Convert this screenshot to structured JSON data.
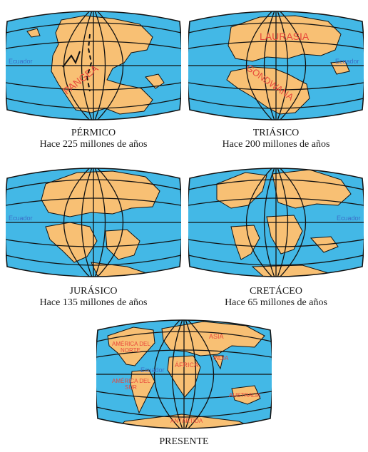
{
  "colors": {
    "ocean": "#43b8e6",
    "land": "#f8c074",
    "grid": "#111111",
    "label": "#e8473b",
    "equator_label": "#3c6fc9"
  },
  "maps": [
    {
      "period": "PÉRMICO",
      "age": "Hace 225 millones de años",
      "equator": "Ecuador",
      "labels": [
        "PANGEA"
      ]
    },
    {
      "period": "TRIÁSICO",
      "age": "Hace 200 millones de años",
      "equator": "Ecuador",
      "labels": [
        "LAURASIA",
        "GONDWANA"
      ]
    },
    {
      "period": "JURÁSICO",
      "age": "Hace 135 millones de años",
      "equator": "Ecuador",
      "labels": []
    },
    {
      "period": "CRETÁCEO",
      "age": "Hace 65 millones de años",
      "equator": "Ecuador",
      "labels": []
    },
    {
      "period": "PRESENTE",
      "age": "",
      "equator": "Ecuador",
      "labels": [
        "AMÉRICA DEL",
        "NORTE",
        "AMÉRICA DEL",
        "SUR",
        "ÁFRICA",
        "ASIA",
        "INDIA",
        "AUSTRALIA",
        "ANTÁRTIDA"
      ]
    }
  ]
}
